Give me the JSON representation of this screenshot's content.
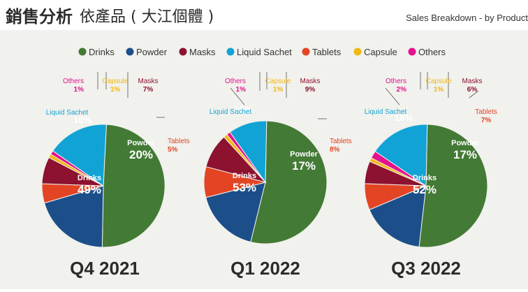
{
  "header": {
    "title_main": "銷售分析",
    "title_sub": "依產品 ( 大江個體 )",
    "subtitle_right": "Sales Breakdown - by Product"
  },
  "legend": [
    {
      "label": "Drinks",
      "color": "#437a35"
    },
    {
      "label": "Powder",
      "color": "#1c4f8a"
    },
    {
      "label": "Masks",
      "color": "#8c1230"
    },
    {
      "label": "Liquid Sachet",
      "color": "#12a3d6"
    },
    {
      "label": "Tablets",
      "color": "#e34424"
    },
    {
      "label": "Capsule",
      "color": "#f2b812"
    },
    {
      "label": "Others",
      "color": "#e4128c"
    }
  ],
  "chart_data": [
    {
      "type": "pie",
      "title": "Q4 2021",
      "slices": [
        {
          "label": "Drinks",
          "value": 49,
          "display": "49%"
        },
        {
          "label": "Powder",
          "value": 20,
          "display": "20%"
        },
        {
          "label": "Tablets",
          "value": 5,
          "display": "5%"
        },
        {
          "label": "Masks",
          "value": 7,
          "display": "7%"
        },
        {
          "label": "Capsule",
          "value": 1,
          "display": "1%"
        },
        {
          "label": "Others",
          "value": 1,
          "display": "1%"
        },
        {
          "label": "Liquid Sachet",
          "value": 16,
          "display": "16%"
        }
      ]
    },
    {
      "type": "pie",
      "title": "Q1 2022",
      "slices": [
        {
          "label": "Drinks",
          "value": 53,
          "display": "53%"
        },
        {
          "label": "Powder",
          "value": 17,
          "display": "17%"
        },
        {
          "label": "Tablets",
          "value": 8,
          "display": "8%"
        },
        {
          "label": "Masks",
          "value": 9,
          "display": "9%"
        },
        {
          "label": "Capsule",
          "value": 1,
          "display": "1%"
        },
        {
          "label": "Others",
          "value": 1,
          "display": "1%"
        },
        {
          "label": "Liquid Sachet",
          "value": 10,
          "display": "10%"
        }
      ]
    },
    {
      "type": "pie",
      "title": "Q3 2022",
      "slices": [
        {
          "label": "Drinks",
          "value": 52,
          "display": "52%"
        },
        {
          "label": "Powder",
          "value": 17,
          "display": "17%"
        },
        {
          "label": "Tablets",
          "value": 7,
          "display": "7%"
        },
        {
          "label": "Masks",
          "value": 6,
          "display": "6%"
        },
        {
          "label": "Capsule",
          "value": 1,
          "display": "1%"
        },
        {
          "label": "Others",
          "value": 2,
          "display": "2%"
        },
        {
          "label": "Liquid Sachet",
          "value": 16,
          "display": "16%"
        }
      ]
    }
  ]
}
